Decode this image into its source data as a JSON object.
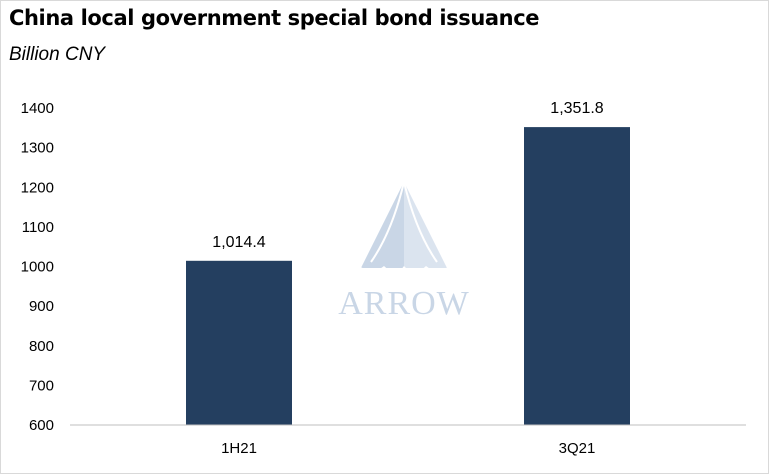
{
  "chart_data": {
    "type": "bar",
    "title": "China local government special bond issuance",
    "subtitle": "Billion CNY",
    "categories": [
      "1H21",
      "3Q21"
    ],
    "values": [
      1014.4,
      1351.8
    ],
    "data_labels": [
      "1,014.4",
      "1,351.8"
    ],
    "ylim": [
      600,
      1400
    ],
    "yticks": [
      600,
      700,
      800,
      900,
      1000,
      1100,
      1200,
      1300,
      1400
    ],
    "xlabel": "",
    "ylabel": "",
    "grid": false,
    "bar_color": "#243f60"
  },
  "watermark": {
    "text": "ARROW",
    "icon": "arrow-logo-icon",
    "color": "#c9d6e6"
  }
}
